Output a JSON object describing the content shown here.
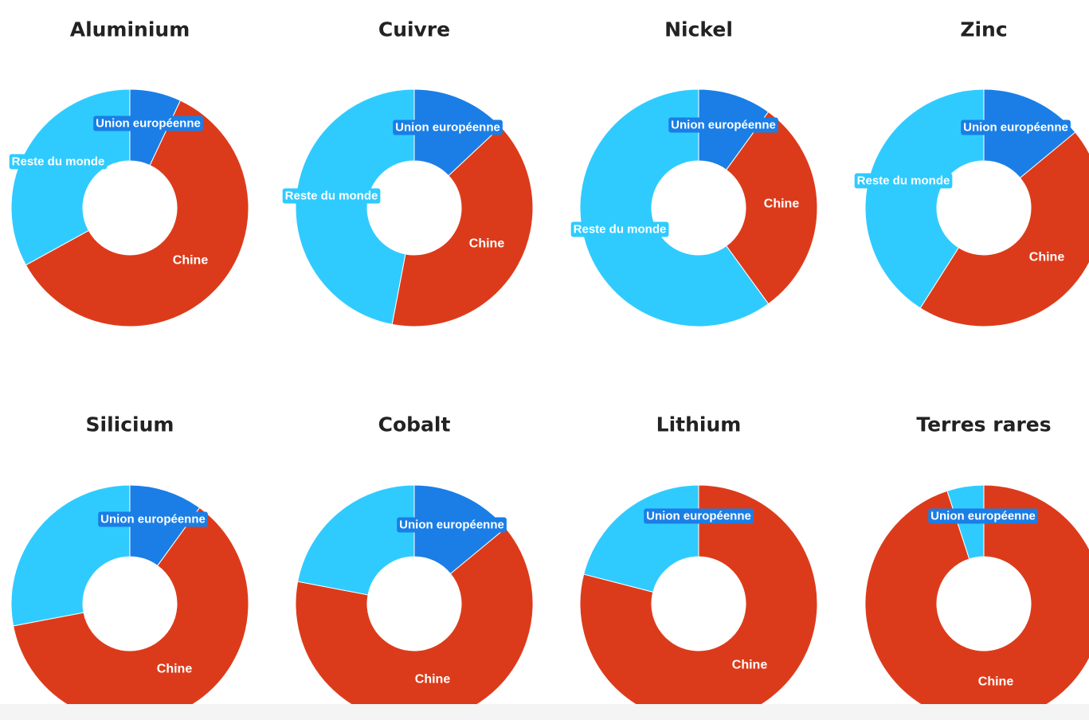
{
  "colors": {
    "union_europeenne": "#1a7ee6",
    "chine": "#dc3b1b",
    "reste_du_monde": "#2fcbff",
    "title": "#222222",
    "background": "#ffffff"
  },
  "chart_data": [
    {
      "type": "pie",
      "title": "Aluminium",
      "categories": [
        "Union européenne",
        "Chine",
        "Reste du monde"
      ],
      "values": [
        7,
        60,
        33
      ],
      "labels_shown": [
        "Union européenne",
        "Chine",
        "Reste du monde"
      ]
    },
    {
      "type": "pie",
      "title": "Cuivre",
      "categories": [
        "Union européenne",
        "Chine",
        "Reste du monde"
      ],
      "values": [
        13,
        40,
        47
      ],
      "labels_shown": [
        "Union européenne",
        "Chine",
        "Reste du monde"
      ]
    },
    {
      "type": "pie",
      "title": "Nickel",
      "categories": [
        "Union européenne",
        "Chine",
        "Reste du monde"
      ],
      "values": [
        10,
        30,
        60
      ],
      "labels_shown": [
        "Union européenne",
        "Chine",
        "Reste du monde"
      ]
    },
    {
      "type": "pie",
      "title": "Zinc",
      "categories": [
        "Union européenne",
        "Chine",
        "Reste du monde"
      ],
      "values": [
        14,
        45,
        41
      ],
      "labels_shown": [
        "Union européenne",
        "Chine",
        "Reste du monde"
      ]
    },
    {
      "type": "pie",
      "title": "Silicium",
      "categories": [
        "Union européenne",
        "Chine",
        "Reste du monde"
      ],
      "values": [
        10,
        62,
        28
      ],
      "labels_shown": [
        "Union européenne",
        "Chine"
      ]
    },
    {
      "type": "pie",
      "title": "Cobalt",
      "categories": [
        "Union européenne",
        "Chine",
        "Reste du monde"
      ],
      "values": [
        14,
        64,
        22
      ],
      "labels_shown": [
        "Union européenne",
        "Chine"
      ]
    },
    {
      "type": "pie",
      "title": "Lithium",
      "categories": [
        "Union européenne",
        "Chine",
        "Reste du monde"
      ],
      "values": [
        0,
        79,
        21
      ],
      "labels_shown": [
        "Union européenne",
        "Chine"
      ]
    },
    {
      "type": "pie",
      "title": "Terres rares",
      "categories": [
        "Union européenne",
        "Chine",
        "Reste du monde"
      ],
      "values": [
        0,
        95,
        5
      ],
      "labels_shown": [
        "Union européenne",
        "Chine"
      ]
    }
  ]
}
